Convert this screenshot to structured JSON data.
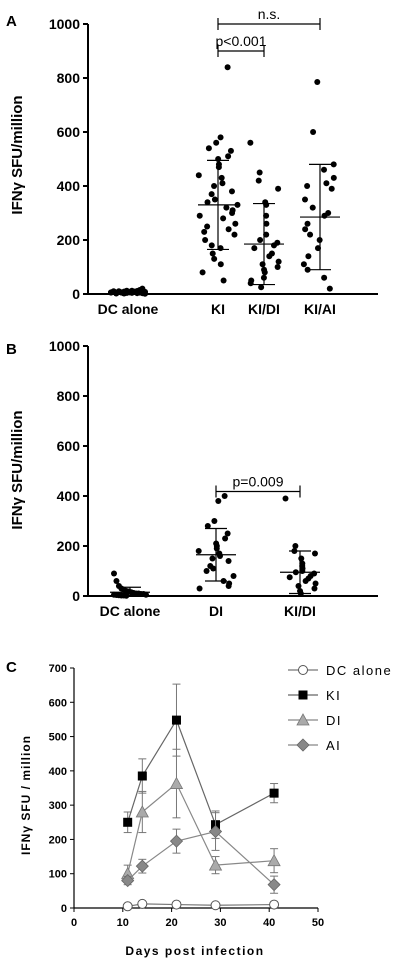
{
  "chart_data": [
    {
      "panel_label": "A",
      "type": "scatter",
      "ylabel": "IFNγ SFU/million",
      "ylim": [
        0,
        1000
      ],
      "yticks": [
        "0",
        "200",
        "400",
        "600",
        "800",
        "1000"
      ],
      "categories": [
        "DC alone",
        "KI",
        "KI/DI",
        "KI/AI"
      ],
      "groups": [
        {
          "category": "DC alone",
          "mean": 8,
          "sd_low": 4,
          "sd_high": 12,
          "values": [
            5,
            8,
            3,
            10,
            6,
            2,
            12,
            7,
            4,
            9,
            11,
            5,
            3,
            8,
            6,
            10,
            2,
            7,
            5,
            9,
            4,
            6,
            12,
            8,
            3,
            15,
            20,
            1
          ]
        },
        {
          "category": "KI",
          "mean": 330,
          "sd_low": 165,
          "sd_high": 495,
          "values": [
            840,
            580,
            560,
            540,
            530,
            510,
            500,
            480,
            470,
            440,
            430,
            410,
            400,
            380,
            370,
            350,
            340,
            330,
            320,
            310,
            300,
            290,
            280,
            260,
            250,
            240,
            230,
            220,
            200,
            180,
            170,
            150,
            130,
            110,
            80,
            50
          ]
        },
        {
          "category": "KI/DI",
          "mean": 185,
          "sd_low": 35,
          "sd_high": 335,
          "values": [
            560,
            450,
            420,
            390,
            340,
            330,
            290,
            260,
            220,
            200,
            190,
            180,
            170,
            150,
            140,
            120,
            110,
            100,
            90,
            80,
            60,
            50,
            40,
            25
          ]
        },
        {
          "category": "KI/AI",
          "mean": 285,
          "sd_low": 90,
          "sd_high": 480,
          "values": [
            785,
            600,
            480,
            460,
            430,
            410,
            400,
            390,
            350,
            320,
            300,
            290,
            260,
            240,
            220,
            200,
            170,
            140,
            110,
            90,
            60,
            20
          ]
        }
      ],
      "annotations": [
        {
          "text": "p<0.001",
          "from": "KI",
          "to": "KI/DI",
          "y": 900
        },
        {
          "text": "n.s.",
          "from": "KI",
          "to": "KI/AI",
          "y": 1000
        }
      ]
    },
    {
      "panel_label": "B",
      "type": "scatter",
      "ylabel": "IFNγ SFU/million",
      "ylim": [
        0,
        1000
      ],
      "yticks": [
        "0",
        "200",
        "400",
        "600",
        "800",
        "1000"
      ],
      "categories": [
        "DC alone",
        "DI",
        "KI/DI"
      ],
      "groups": [
        {
          "category": "DC alone",
          "mean": 15,
          "sd_low": 0,
          "sd_high": 35,
          "values": [
            90,
            60,
            40,
            30,
            25,
            20,
            18,
            15,
            12,
            10,
            10,
            8,
            8,
            5,
            5,
            4,
            3,
            2,
            2,
            1
          ]
        },
        {
          "category": "DI",
          "mean": 165,
          "sd_low": 60,
          "sd_high": 270,
          "values": [
            400,
            380,
            300,
            280,
            250,
            230,
            210,
            200,
            190,
            180,
            170,
            160,
            150,
            140,
            120,
            110,
            100,
            80,
            60,
            50,
            40,
            30
          ]
        },
        {
          "category": "KI/DI",
          "mean": 95,
          "sd_low": 10,
          "sd_high": 180,
          "values": [
            390,
            200,
            180,
            170,
            150,
            130,
            120,
            110,
            100,
            95,
            90,
            80,
            75,
            70,
            60,
            50,
            40,
            30,
            20,
            10
          ]
        }
      ],
      "annotations": [
        {
          "text": "p=0.009",
          "from": "DI",
          "to": "KI/DI",
          "y": 330
        }
      ]
    },
    {
      "panel_label": "C",
      "type": "line",
      "xlabel": "Days post infection",
      "ylabel": "IFNγ SFU / million",
      "xlim": [
        0,
        50
      ],
      "ylim": [
        0,
        700
      ],
      "xticks": [
        "0",
        "10",
        "20",
        "30",
        "40",
        "50"
      ],
      "yticks": [
        "0",
        "100",
        "200",
        "300",
        "400",
        "500",
        "600",
        "700"
      ],
      "legend_position": "top-right",
      "series": [
        {
          "name": "DC alone",
          "marker": "circle-open",
          "points": [
            [
              11,
              5
            ],
            [
              14,
              12
            ],
            [
              21,
              10
            ],
            [
              29,
              8
            ],
            [
              41,
              10
            ]
          ],
          "err": [
            3,
            3,
            3,
            3,
            3
          ]
        },
        {
          "name": "KI",
          "marker": "square",
          "points": [
            [
              11,
              250
            ],
            [
              14,
              385
            ],
            [
              21,
              548
            ],
            [
              29,
              243
            ],
            [
              41,
              335
            ]
          ],
          "err": [
            30,
            50,
            105,
            40,
            28
          ]
        },
        {
          "name": "DI",
          "marker": "triangle",
          "points": [
            [
              11,
              100
            ],
            [
              14,
              280
            ],
            [
              21,
              363
            ],
            [
              29,
              125
            ],
            [
              41,
              138
            ]
          ],
          "err": [
            25,
            60,
            100,
            25,
            35
          ]
        },
        {
          "name": "AI",
          "marker": "diamond",
          "points": [
            [
              11,
              80
            ],
            [
              14,
              122
            ],
            [
              21,
              195
            ],
            [
              29,
              223
            ],
            [
              41,
              68
            ]
          ],
          "err": [
            12,
            20,
            35,
            55,
            25
          ]
        }
      ]
    }
  ]
}
